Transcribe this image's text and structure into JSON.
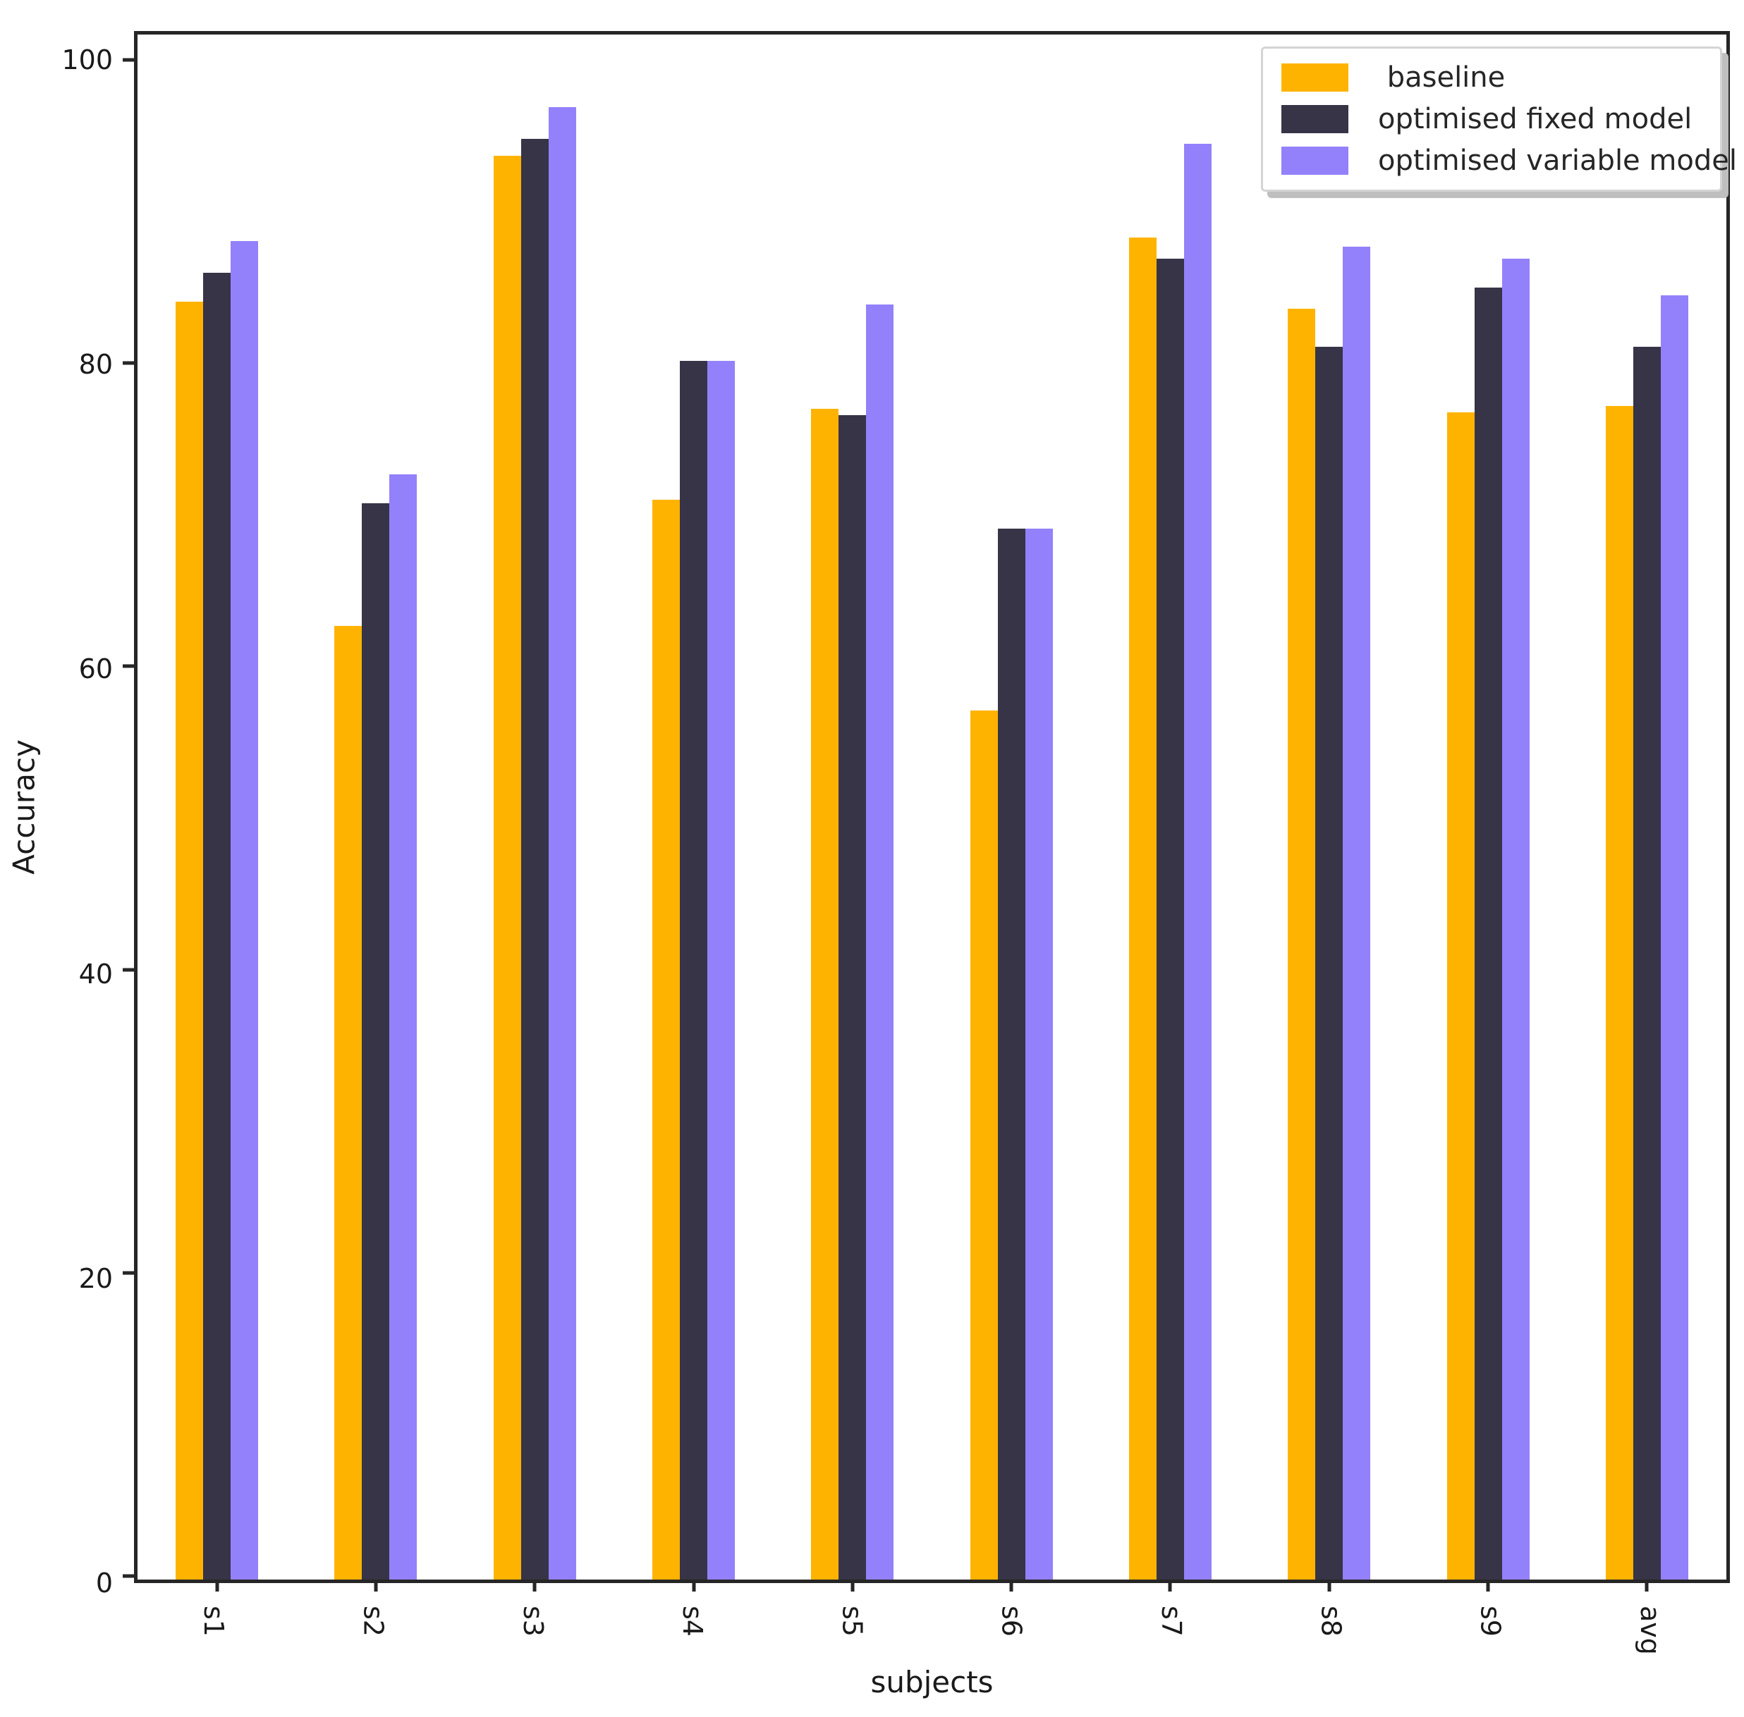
{
  "axes": {
    "xlabel": "subjects",
    "ylabel": "Accuracy",
    "yticks": [
      0,
      20,
      40,
      60,
      80,
      100
    ],
    "ymax_display": 101.9,
    "spine_color": "#262626",
    "tick_label_rotation_deg": 90
  },
  "legend": {
    "position": "upper right",
    "entries": [
      " baseline",
      "optimised fixed model",
      "optimised variable model"
    ]
  },
  "chart_data": {
    "type": "bar",
    "title": "",
    "xlabel": "subjects",
    "ylabel": "Accuracy",
    "ylim": [
      0,
      101.9
    ],
    "grid": false,
    "legend_position": "upper right",
    "categories": [
      "s1",
      "s2",
      "s3",
      "s4",
      "s5",
      "s6",
      "s7",
      "s8",
      "s9",
      "avg"
    ],
    "series": [
      {
        "name": " baseline",
        "color": "#ffb301",
        "values": [
          84.3,
          62.9,
          93.9,
          71.2,
          77.2,
          57.3,
          88.5,
          83.8,
          77.0,
          77.4
        ]
      },
      {
        "name": "optimised fixed model",
        "color": "#373447",
        "values": [
          86.2,
          71.0,
          95.0,
          80.4,
          76.8,
          69.3,
          87.1,
          81.3,
          85.2,
          81.3
        ]
      },
      {
        "name": "optimised variable model",
        "color": "#9381fb",
        "values": [
          88.3,
          72.9,
          97.1,
          80.4,
          84.1,
          69.3,
          94.7,
          87.9,
          87.1,
          84.7
        ]
      }
    ]
  }
}
